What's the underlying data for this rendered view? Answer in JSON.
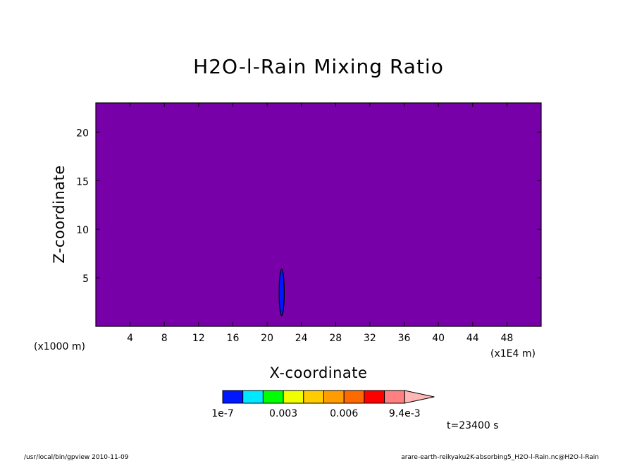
{
  "chart_data": {
    "type": "heatmap",
    "title": "H2O-l-Rain Mixing Ratio",
    "xlabel": "X-coordinate",
    "ylabel": "Z-coordinate",
    "x_unit": "(x1E4 m)",
    "y_unit": "(x1000 m)",
    "xlim": [
      0,
      52
    ],
    "ylim": [
      0,
      23
    ],
    "x_ticks": [
      4,
      8,
      12,
      16,
      20,
      24,
      28,
      32,
      36,
      40,
      44,
      48
    ],
    "y_ticks": [
      5,
      10,
      15,
      20
    ],
    "x_tick_labels": [
      "4",
      "8",
      "12",
      "16",
      "20",
      "24",
      "28",
      "32",
      "36",
      "40",
      "44",
      "48"
    ],
    "y_tick_labels": [
      "5",
      "10",
      "15",
      "20"
    ],
    "background_color": "#7800a8",
    "features": [
      {
        "shape": "ellipse",
        "cx": 21.7,
        "cy": 3.5,
        "rx": 0.3,
        "ry": 2.4,
        "color": "#0018ff"
      }
    ],
    "colorbar": {
      "colors": [
        "#0018ff",
        "#00e8ff",
        "#00ff00",
        "#f0ff00",
        "#ffcc00",
        "#ff9c00",
        "#ff6a00",
        "#ff0000",
        "#ff8080",
        "#ffb6b6"
      ],
      "labels": [
        "1e-7",
        "0.003",
        "0.006",
        "9.4e-3"
      ]
    },
    "time_label": "t=23400 s",
    "grid": false
  },
  "footer": {
    "left": "/usr/local/bin/gpview   2010-11-09",
    "right": "arare-earth-reikyaku2K-absorbing5_H2O-l-Rain.nc@H2O-l-Rain"
  }
}
